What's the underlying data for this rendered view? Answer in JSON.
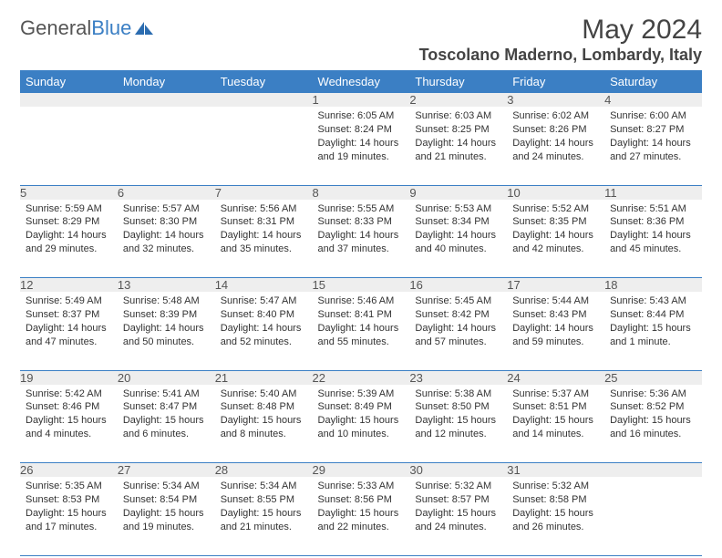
{
  "brand": {
    "name_part1": "General",
    "name_part2": "Blue"
  },
  "title": "May 2024",
  "location": "Toscolano Maderno, Lombardy, Italy",
  "colors": {
    "header_bg": "#3b7fc4",
    "header_text": "#ffffff",
    "daynum_bg": "#eeeeee",
    "rule": "#3b7fc4",
    "text": "#333333"
  },
  "daysOfWeek": [
    "Sunday",
    "Monday",
    "Tuesday",
    "Wednesday",
    "Thursday",
    "Friday",
    "Saturday"
  ],
  "weeks": [
    [
      {
        "n": "",
        "sunrise": "",
        "sunset": "",
        "daylight": ""
      },
      {
        "n": "",
        "sunrise": "",
        "sunset": "",
        "daylight": ""
      },
      {
        "n": "",
        "sunrise": "",
        "sunset": "",
        "daylight": ""
      },
      {
        "n": "1",
        "sunrise": "Sunrise: 6:05 AM",
        "sunset": "Sunset: 8:24 PM",
        "daylight": "Daylight: 14 hours and 19 minutes."
      },
      {
        "n": "2",
        "sunrise": "Sunrise: 6:03 AM",
        "sunset": "Sunset: 8:25 PM",
        "daylight": "Daylight: 14 hours and 21 minutes."
      },
      {
        "n": "3",
        "sunrise": "Sunrise: 6:02 AM",
        "sunset": "Sunset: 8:26 PM",
        "daylight": "Daylight: 14 hours and 24 minutes."
      },
      {
        "n": "4",
        "sunrise": "Sunrise: 6:00 AM",
        "sunset": "Sunset: 8:27 PM",
        "daylight": "Daylight: 14 hours and 27 minutes."
      }
    ],
    [
      {
        "n": "5",
        "sunrise": "Sunrise: 5:59 AM",
        "sunset": "Sunset: 8:29 PM",
        "daylight": "Daylight: 14 hours and 29 minutes."
      },
      {
        "n": "6",
        "sunrise": "Sunrise: 5:57 AM",
        "sunset": "Sunset: 8:30 PM",
        "daylight": "Daylight: 14 hours and 32 minutes."
      },
      {
        "n": "7",
        "sunrise": "Sunrise: 5:56 AM",
        "sunset": "Sunset: 8:31 PM",
        "daylight": "Daylight: 14 hours and 35 minutes."
      },
      {
        "n": "8",
        "sunrise": "Sunrise: 5:55 AM",
        "sunset": "Sunset: 8:33 PM",
        "daylight": "Daylight: 14 hours and 37 minutes."
      },
      {
        "n": "9",
        "sunrise": "Sunrise: 5:53 AM",
        "sunset": "Sunset: 8:34 PM",
        "daylight": "Daylight: 14 hours and 40 minutes."
      },
      {
        "n": "10",
        "sunrise": "Sunrise: 5:52 AM",
        "sunset": "Sunset: 8:35 PM",
        "daylight": "Daylight: 14 hours and 42 minutes."
      },
      {
        "n": "11",
        "sunrise": "Sunrise: 5:51 AM",
        "sunset": "Sunset: 8:36 PM",
        "daylight": "Daylight: 14 hours and 45 minutes."
      }
    ],
    [
      {
        "n": "12",
        "sunrise": "Sunrise: 5:49 AM",
        "sunset": "Sunset: 8:37 PM",
        "daylight": "Daylight: 14 hours and 47 minutes."
      },
      {
        "n": "13",
        "sunrise": "Sunrise: 5:48 AM",
        "sunset": "Sunset: 8:39 PM",
        "daylight": "Daylight: 14 hours and 50 minutes."
      },
      {
        "n": "14",
        "sunrise": "Sunrise: 5:47 AM",
        "sunset": "Sunset: 8:40 PM",
        "daylight": "Daylight: 14 hours and 52 minutes."
      },
      {
        "n": "15",
        "sunrise": "Sunrise: 5:46 AM",
        "sunset": "Sunset: 8:41 PM",
        "daylight": "Daylight: 14 hours and 55 minutes."
      },
      {
        "n": "16",
        "sunrise": "Sunrise: 5:45 AM",
        "sunset": "Sunset: 8:42 PM",
        "daylight": "Daylight: 14 hours and 57 minutes."
      },
      {
        "n": "17",
        "sunrise": "Sunrise: 5:44 AM",
        "sunset": "Sunset: 8:43 PM",
        "daylight": "Daylight: 14 hours and 59 minutes."
      },
      {
        "n": "18",
        "sunrise": "Sunrise: 5:43 AM",
        "sunset": "Sunset: 8:44 PM",
        "daylight": "Daylight: 15 hours and 1 minute."
      }
    ],
    [
      {
        "n": "19",
        "sunrise": "Sunrise: 5:42 AM",
        "sunset": "Sunset: 8:46 PM",
        "daylight": "Daylight: 15 hours and 4 minutes."
      },
      {
        "n": "20",
        "sunrise": "Sunrise: 5:41 AM",
        "sunset": "Sunset: 8:47 PM",
        "daylight": "Daylight: 15 hours and 6 minutes."
      },
      {
        "n": "21",
        "sunrise": "Sunrise: 5:40 AM",
        "sunset": "Sunset: 8:48 PM",
        "daylight": "Daylight: 15 hours and 8 minutes."
      },
      {
        "n": "22",
        "sunrise": "Sunrise: 5:39 AM",
        "sunset": "Sunset: 8:49 PM",
        "daylight": "Daylight: 15 hours and 10 minutes."
      },
      {
        "n": "23",
        "sunrise": "Sunrise: 5:38 AM",
        "sunset": "Sunset: 8:50 PM",
        "daylight": "Daylight: 15 hours and 12 minutes."
      },
      {
        "n": "24",
        "sunrise": "Sunrise: 5:37 AM",
        "sunset": "Sunset: 8:51 PM",
        "daylight": "Daylight: 15 hours and 14 minutes."
      },
      {
        "n": "25",
        "sunrise": "Sunrise: 5:36 AM",
        "sunset": "Sunset: 8:52 PM",
        "daylight": "Daylight: 15 hours and 16 minutes."
      }
    ],
    [
      {
        "n": "26",
        "sunrise": "Sunrise: 5:35 AM",
        "sunset": "Sunset: 8:53 PM",
        "daylight": "Daylight: 15 hours and 17 minutes."
      },
      {
        "n": "27",
        "sunrise": "Sunrise: 5:34 AM",
        "sunset": "Sunset: 8:54 PM",
        "daylight": "Daylight: 15 hours and 19 minutes."
      },
      {
        "n": "28",
        "sunrise": "Sunrise: 5:34 AM",
        "sunset": "Sunset: 8:55 PM",
        "daylight": "Daylight: 15 hours and 21 minutes."
      },
      {
        "n": "29",
        "sunrise": "Sunrise: 5:33 AM",
        "sunset": "Sunset: 8:56 PM",
        "daylight": "Daylight: 15 hours and 22 minutes."
      },
      {
        "n": "30",
        "sunrise": "Sunrise: 5:32 AM",
        "sunset": "Sunset: 8:57 PM",
        "daylight": "Daylight: 15 hours and 24 minutes."
      },
      {
        "n": "31",
        "sunrise": "Sunrise: 5:32 AM",
        "sunset": "Sunset: 8:58 PM",
        "daylight": "Daylight: 15 hours and 26 minutes."
      },
      {
        "n": "",
        "sunrise": "",
        "sunset": "",
        "daylight": ""
      }
    ]
  ]
}
